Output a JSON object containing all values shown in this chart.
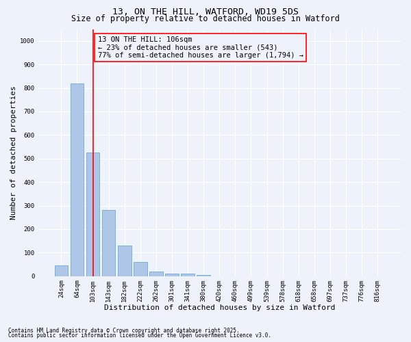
{
  "title1": "13, ON THE HILL, WATFORD, WD19 5DS",
  "title2": "Size of property relative to detached houses in Watford",
  "xlabel": "Distribution of detached houses by size in Watford",
  "ylabel": "Number of detached properties",
  "categories": [
    "24sqm",
    "64sqm",
    "103sqm",
    "143sqm",
    "182sqm",
    "222sqm",
    "262sqm",
    "301sqm",
    "341sqm",
    "380sqm",
    "420sqm",
    "460sqm",
    "499sqm",
    "539sqm",
    "578sqm",
    "618sqm",
    "658sqm",
    "697sqm",
    "737sqm",
    "776sqm",
    "816sqm"
  ],
  "values": [
    46,
    820,
    525,
    280,
    130,
    60,
    20,
    10,
    10,
    5,
    0,
    0,
    0,
    0,
    0,
    0,
    0,
    0,
    0,
    0,
    0
  ],
  "bar_color": "#aec6e8",
  "bar_edgecolor": "#5a9fd4",
  "vline_x_index": 2,
  "vline_color": "red",
  "ylim": [
    0,
    1050
  ],
  "yticks": [
    0,
    100,
    200,
    300,
    400,
    500,
    600,
    700,
    800,
    900,
    1000
  ],
  "annotation_text": "13 ON THE HILL: 106sqm\n← 23% of detached houses are smaller (543)\n77% of semi-detached houses are larger (1,794) →",
  "annotation_box_edgecolor": "red",
  "footnote1": "Contains HM Land Registry data © Crown copyright and database right 2025.",
  "footnote2": "Contains public sector information licensed under the Open Government Licence v3.0.",
  "bg_color": "#eef2fb",
  "grid_color": "#ffffff",
  "title1_fontsize": 9.5,
  "title2_fontsize": 8.5,
  "axis_label_fontsize": 8,
  "tick_fontsize": 6.5,
  "annotation_fontsize": 7.5,
  "footnote_fontsize": 5.5
}
